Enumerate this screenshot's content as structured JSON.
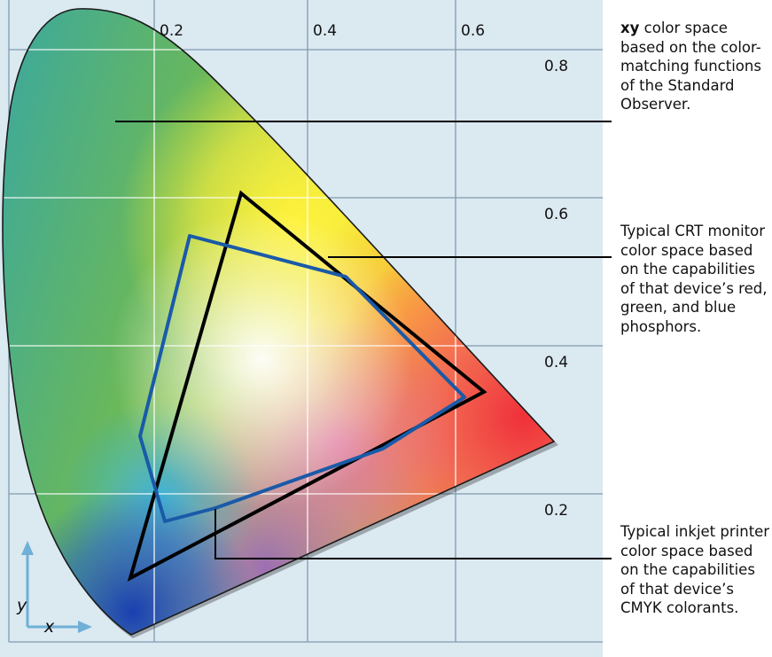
{
  "axes": {
    "x_ticks": [
      "0.2",
      "0.4",
      "0.6"
    ],
    "y_ticks": [
      "0.8",
      "0.6",
      "0.4",
      "0.2"
    ],
    "x_letter": "x",
    "y_letter": "y"
  },
  "captions": {
    "xy_bold": "xy",
    "xy_rest": "color space based on the color-matching functions of the Standard Observer.",
    "crt": "Typical CRT monitor color space based on the capabilities of that device’s red, green, and blue phosphors.",
    "inkjet": "Typical inkjet printer color space based on the capabilities of that device’s CMYK colorants."
  },
  "colors": {
    "grid_bg": "#dbe9f1",
    "grid_line": "#7f9bb0",
    "crt_triangle": "#000000",
    "printer_gamut": "#1a5aa8",
    "axis_arrow": "#6fb0d6"
  }
}
